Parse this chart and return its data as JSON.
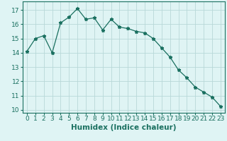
{
  "x": [
    0,
    1,
    2,
    3,
    4,
    5,
    6,
    7,
    8,
    9,
    10,
    11,
    12,
    13,
    14,
    15,
    16,
    17,
    18,
    19,
    20,
    21,
    22,
    23
  ],
  "y": [
    14.1,
    15.0,
    15.2,
    14.0,
    16.1,
    16.5,
    17.1,
    16.35,
    16.45,
    15.6,
    16.35,
    15.8,
    15.7,
    15.5,
    15.4,
    15.0,
    14.35,
    13.7,
    12.8,
    12.25,
    11.6,
    11.25,
    10.9,
    10.25
  ],
  "line_color": "#1a7060",
  "marker": "*",
  "marker_size": 3.5,
  "xlabel": "Humidex (Indice chaleur)",
  "xlim": [
    -0.5,
    23.5
  ],
  "ylim": [
    9.8,
    17.6
  ],
  "yticks": [
    10,
    11,
    12,
    13,
    14,
    15,
    16,
    17
  ],
  "xticks": [
    0,
    1,
    2,
    3,
    4,
    5,
    6,
    7,
    8,
    9,
    10,
    11,
    12,
    13,
    14,
    15,
    16,
    17,
    18,
    19,
    20,
    21,
    22,
    23
  ],
  "background_color": "#dff4f4",
  "grid_color": "#b8d8d8",
  "xlabel_fontsize": 7.5,
  "tick_fontsize": 6.5
}
